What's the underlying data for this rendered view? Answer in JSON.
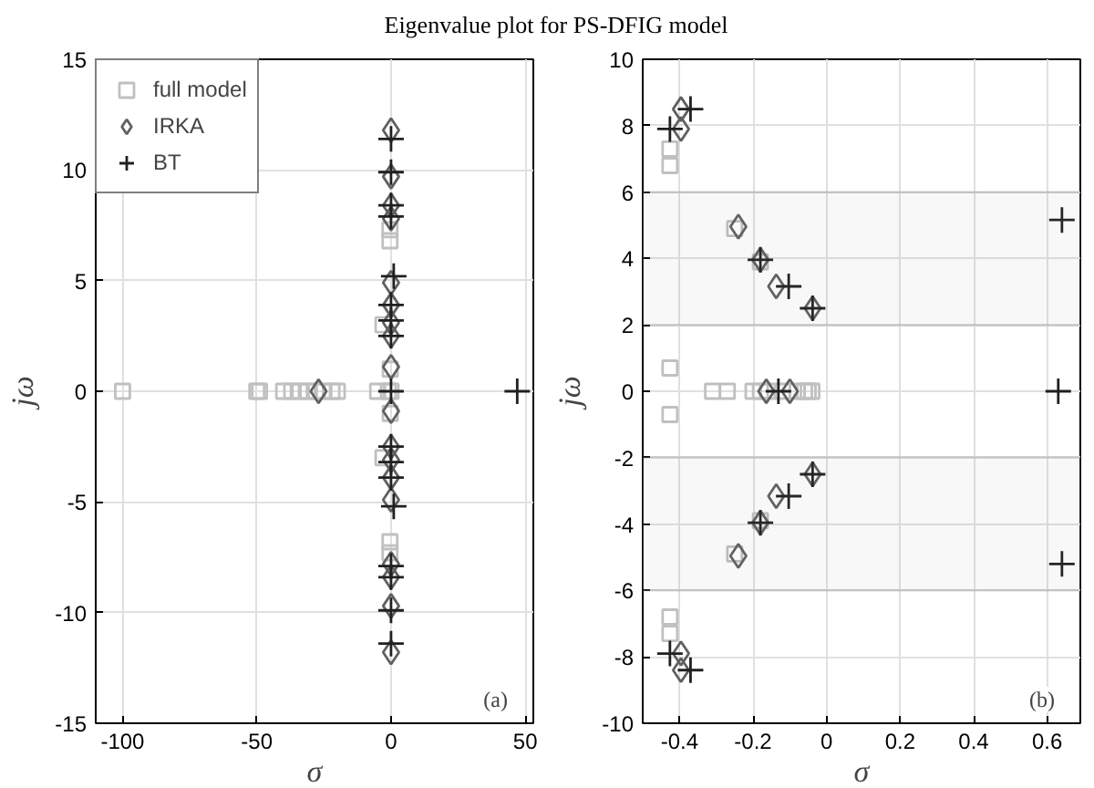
{
  "chart_data": [
    {
      "type": "scatter",
      "title": "Eigenvalue plot for PS-DFIG model",
      "xlabel": "σ",
      "ylabel": "jω",
      "xlim": [
        -110,
        53
      ],
      "ylim": [
        -15,
        15
      ],
      "xticks": [
        -100,
        -50,
        0,
        50
      ],
      "yticks": [
        -15,
        -10,
        -5,
        0,
        5,
        10,
        15
      ],
      "grid": true,
      "legend": "top left",
      "annotations": [
        "(a)"
      ],
      "series": [
        {
          "name": "full model",
          "color": "#c0c0c0",
          "marker": "square",
          "x": [
            -100,
            -50,
            -49,
            -40,
            -37,
            -34,
            -31,
            -28,
            -25,
            -22,
            -20,
            -5,
            -1,
            -0.4,
            -0.4,
            -0.4,
            -0.4,
            -3,
            -3,
            -0.3,
            -0.3,
            0
          ],
          "values": [
            0,
            0,
            0,
            0,
            0,
            0,
            0,
            0,
            0,
            0,
            0,
            0,
            0,
            6.8,
            7.3,
            -6.8,
            -7.3,
            3,
            -3,
            1,
            -1,
            0
          ]
        },
        {
          "name": "IRKA",
          "color": "#606060",
          "marker": "diamond",
          "x": [
            -27,
            0,
            0,
            0,
            0,
            0,
            0,
            0,
            0,
            0,
            0,
            0,
            0,
            0,
            0,
            0,
            0,
            0,
            0
          ],
          "values": [
            0,
            11.8,
            9.7,
            8.4,
            7.8,
            4.9,
            3.9,
            3.1,
            2.5,
            1.1,
            -0.9,
            -2.5,
            -3.1,
            -3.9,
            -4.9,
            -7.8,
            -8.4,
            -9.7,
            -11.8
          ]
        },
        {
          "name": "BT",
          "color": "#202020",
          "marker": "cross",
          "x": [
            47,
            0,
            0,
            0,
            0,
            1,
            0,
            0,
            0,
            0,
            0,
            0,
            0,
            1,
            0,
            0,
            0,
            0
          ],
          "values": [
            0,
            11.4,
            9.9,
            8.4,
            7.9,
            5.2,
            3.9,
            3.2,
            2.5,
            0,
            -2.5,
            -3.2,
            -3.9,
            -5.2,
            -7.9,
            -8.4,
            -9.9,
            -11.4
          ]
        }
      ]
    },
    {
      "type": "scatter",
      "xlabel": "σ",
      "ylabel": "jω",
      "xlim": [
        -0.5,
        0.69
      ],
      "ylim": [
        -10,
        10
      ],
      "xticks": [
        -0.4,
        -0.2,
        0,
        0.2,
        0.4,
        0.6
      ],
      "yticks": [
        -10,
        -8,
        -6,
        -4,
        -2,
        0,
        2,
        4,
        6,
        8,
        10
      ],
      "grid": true,
      "annotations": [
        "(b)"
      ],
      "bands": [
        {
          "axis": "y",
          "from": 2,
          "to": 6,
          "color": "#808080"
        },
        {
          "axis": "y",
          "from": -6,
          "to": -2,
          "color": "#808080"
        }
      ],
      "series": [
        {
          "color": "#c0c0c0",
          "marker": "square",
          "x": [
            -0.426,
            -0.426,
            -0.426,
            -0.426,
            -0.426,
            -0.426,
            -0.31,
            -0.27,
            -0.2,
            -0.18,
            -0.16,
            -0.12,
            -0.08,
            -0.06,
            -0.05,
            -0.04,
            -0.25,
            -0.25,
            -0.18,
            -0.18
          ],
          "values": [
            7.3,
            6.8,
            0.7,
            -0.7,
            -6.8,
            -7.3,
            0,
            0,
            0,
            0,
            0,
            0,
            0,
            0,
            0,
            0,
            4.9,
            -4.9,
            3.9,
            -3.9
          ]
        },
        {
          "color": "#606060",
          "marker": "diamond",
          "x": [
            -0.24,
            -0.18,
            -0.137,
            -0.038,
            -0.164,
            -0.1,
            -0.396,
            -0.396,
            -0.24,
            -0.18,
            -0.137,
            -0.038,
            -0.396,
            -0.396
          ],
          "values": [
            4.96,
            3.96,
            3.16,
            2.5,
            0,
            0,
            8.5,
            7.9,
            -4.96,
            -3.96,
            -3.16,
            -2.5,
            -7.9,
            -8.4
          ]
        },
        {
          "color": "#202020",
          "marker": "cross",
          "x": [
            -0.426,
            -0.37,
            -0.18,
            -0.103,
            -0.038,
            -0.131,
            0.64,
            0.63,
            -0.426,
            -0.37,
            -0.18,
            -0.103,
            -0.038,
            0.64
          ],
          "values": [
            7.9,
            8.5,
            3.96,
            3.16,
            2.5,
            0,
            5.16,
            0,
            -7.9,
            -8.4,
            -3.96,
            -3.16,
            -2.5,
            -5.2
          ]
        }
      ]
    }
  ]
}
